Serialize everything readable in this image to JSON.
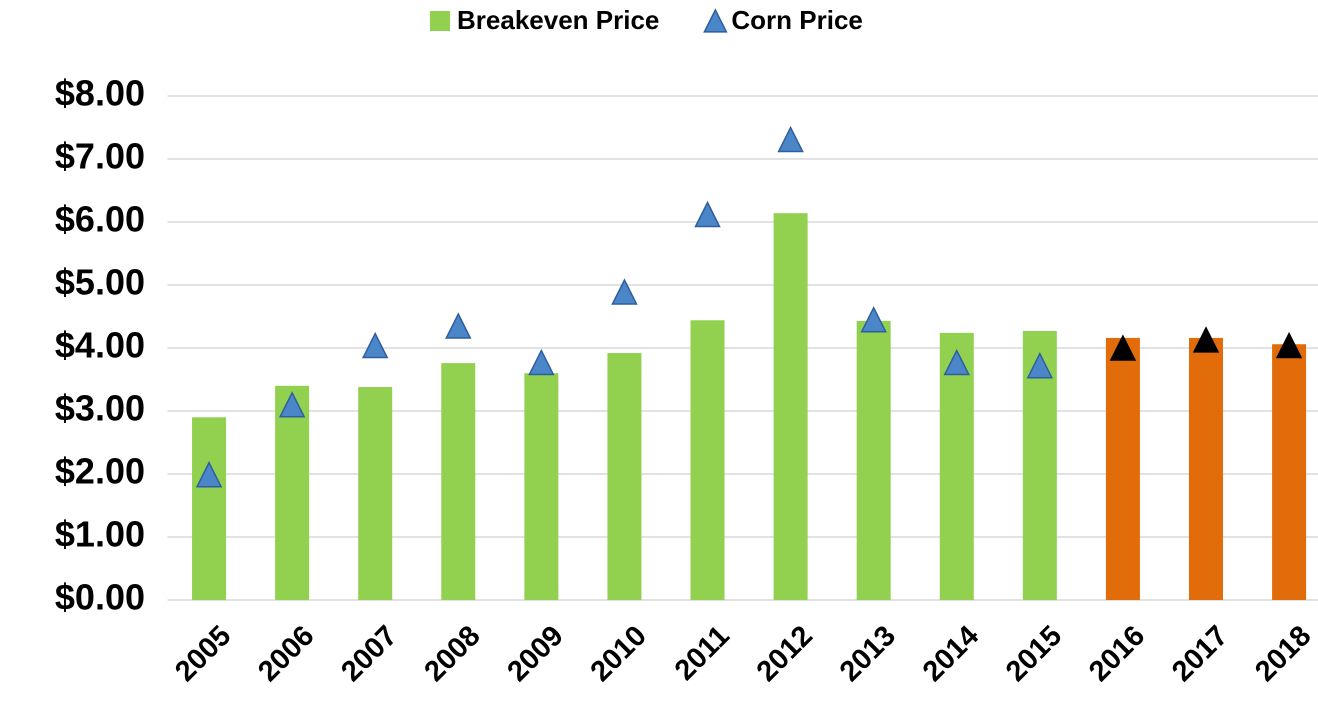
{
  "chart_data": {
    "type": "bar",
    "categories": [
      "2005",
      "2006",
      "2007",
      "2008",
      "2009",
      "2010",
      "2011",
      "2012",
      "2013",
      "2014",
      "2015",
      "2016",
      "2017",
      "2018"
    ],
    "series": [
      {
        "name": "Breakeven Price",
        "type": "bar",
        "color": "#92d050",
        "colors": [
          "#92d050",
          "#92d050",
          "#92d050",
          "#92d050",
          "#92d050",
          "#92d050",
          "#92d050",
          "#92d050",
          "#92d050",
          "#92d050",
          "#92d050",
          "#e36c0a",
          "#e36c0a",
          "#e36c0a"
        ],
        "values": [
          2.9,
          3.4,
          3.38,
          3.76,
          3.6,
          3.92,
          4.44,
          6.14,
          4.43,
          4.24,
          4.27,
          4.16,
          4.16,
          4.06
        ]
      },
      {
        "name": "Corn Price",
        "type": "scatter",
        "color": "#4a86c8",
        "colors": [
          "#4a86c8",
          "#4a86c8",
          "#4a86c8",
          "#4a86c8",
          "#4a86c8",
          "#4a86c8",
          "#4a86c8",
          "#4a86c8",
          "#4a86c8",
          "#4a86c8",
          "#4a86c8",
          "#000000",
          "#000000",
          "#000000"
        ],
        "values": [
          1.97,
          3.08,
          4.02,
          4.33,
          3.75,
          4.87,
          6.1,
          7.29,
          4.43,
          3.75,
          3.7,
          3.98,
          4.11,
          4.02
        ]
      }
    ],
    "ylim": [
      0,
      8
    ],
    "yticks": [
      {
        "value": 0,
        "label": "$0.00"
      },
      {
        "value": 1,
        "label": "$1.00"
      },
      {
        "value": 2,
        "label": "$2.00"
      },
      {
        "value": 3,
        "label": "$3.00"
      },
      {
        "value": 4,
        "label": "$4.00"
      },
      {
        "value": 5,
        "label": "$5.00"
      },
      {
        "value": 6,
        "label": "$6.00"
      },
      {
        "value": 7,
        "label": "$7.00"
      },
      {
        "value": 8,
        "label": "$8.00"
      }
    ],
    "grid": true,
    "legend": "top"
  }
}
